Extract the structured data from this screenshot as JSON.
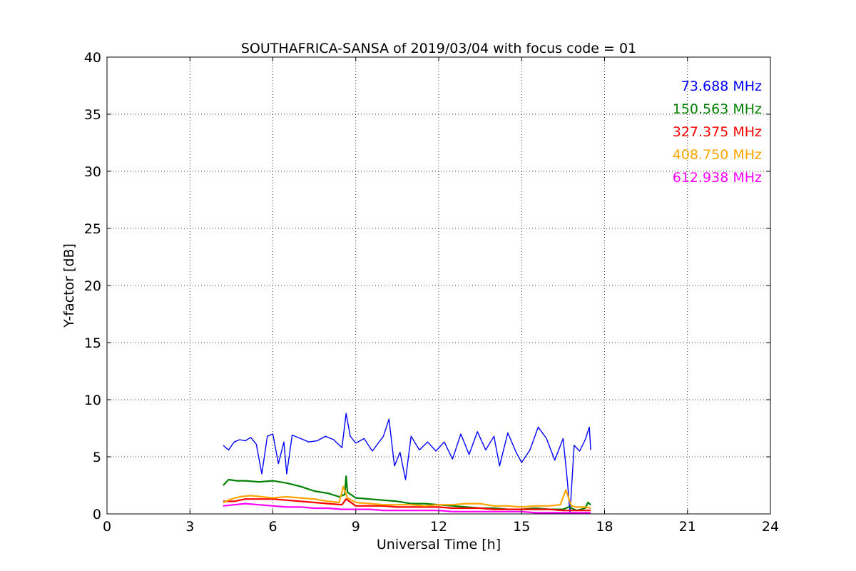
{
  "chart_data": {
    "type": "line",
    "title": "SOUTHAFRICA-SANSA of 2019/03/04 with focus code = 01",
    "xlabel": "Universal Time [h]",
    "ylabel": "Y-factor [dB]",
    "xlim": [
      0,
      24
    ],
    "ylim": [
      0,
      40
    ],
    "xticks": [
      0,
      3,
      6,
      9,
      12,
      15,
      18,
      21,
      24
    ],
    "yticks": [
      0,
      5,
      10,
      15,
      20,
      25,
      30,
      35,
      40
    ],
    "grid": true,
    "legend_position": "top-right",
    "series": [
      {
        "name": "73.688 MHz",
        "color": "#0000ff",
        "points": [
          [
            4.2,
            6.0
          ],
          [
            4.4,
            5.6
          ],
          [
            4.6,
            6.3
          ],
          [
            4.8,
            6.5
          ],
          [
            5.0,
            6.4
          ],
          [
            5.2,
            6.7
          ],
          [
            5.4,
            6.1
          ],
          [
            5.6,
            3.5
          ],
          [
            5.8,
            6.8
          ],
          [
            6.0,
            7.0
          ],
          [
            6.2,
            4.4
          ],
          [
            6.4,
            6.3
          ],
          [
            6.5,
            3.5
          ],
          [
            6.7,
            6.9
          ],
          [
            7.0,
            6.6
          ],
          [
            7.3,
            6.3
          ],
          [
            7.6,
            6.4
          ],
          [
            7.9,
            6.8
          ],
          [
            8.2,
            6.5
          ],
          [
            8.5,
            5.8
          ],
          [
            8.65,
            8.8
          ],
          [
            8.8,
            6.8
          ],
          [
            9.0,
            6.2
          ],
          [
            9.3,
            6.6
          ],
          [
            9.6,
            5.5
          ],
          [
            10.0,
            6.8
          ],
          [
            10.2,
            8.3
          ],
          [
            10.4,
            4.2
          ],
          [
            10.6,
            5.4
          ],
          [
            10.8,
            3.0
          ],
          [
            11.0,
            6.8
          ],
          [
            11.3,
            5.6
          ],
          [
            11.6,
            6.3
          ],
          [
            11.9,
            5.5
          ],
          [
            12.2,
            6.3
          ],
          [
            12.5,
            4.8
          ],
          [
            12.8,
            7.0
          ],
          [
            13.1,
            5.2
          ],
          [
            13.4,
            7.2
          ],
          [
            13.7,
            5.6
          ],
          [
            14.0,
            6.8
          ],
          [
            14.2,
            4.2
          ],
          [
            14.5,
            7.1
          ],
          [
            14.8,
            5.4
          ],
          [
            15.0,
            4.5
          ],
          [
            15.3,
            5.6
          ],
          [
            15.6,
            7.6
          ],
          [
            15.9,
            6.6
          ],
          [
            16.2,
            4.7
          ],
          [
            16.5,
            6.6
          ],
          [
            16.65,
            3.0
          ],
          [
            16.75,
            0.1
          ],
          [
            16.9,
            6.0
          ],
          [
            17.1,
            5.5
          ],
          [
            17.3,
            6.5
          ],
          [
            17.45,
            7.6
          ],
          [
            17.5,
            5.6
          ]
        ]
      },
      {
        "name": "150.563 MHz",
        "color": "#008000",
        "points": [
          [
            4.2,
            2.5
          ],
          [
            4.4,
            3.0
          ],
          [
            4.7,
            2.9
          ],
          [
            5.0,
            2.9
          ],
          [
            5.5,
            2.8
          ],
          [
            6.0,
            2.9
          ],
          [
            6.5,
            2.7
          ],
          [
            7.0,
            2.4
          ],
          [
            7.5,
            2.0
          ],
          [
            8.0,
            1.8
          ],
          [
            8.4,
            1.5
          ],
          [
            8.6,
            1.7
          ],
          [
            8.65,
            3.3
          ],
          [
            8.7,
            1.9
          ],
          [
            9.0,
            1.4
          ],
          [
            9.5,
            1.3
          ],
          [
            10.0,
            1.2
          ],
          [
            10.5,
            1.1
          ],
          [
            11.0,
            0.9
          ],
          [
            11.5,
            0.9
          ],
          [
            12.0,
            0.8
          ],
          [
            12.5,
            0.7
          ],
          [
            13.0,
            0.6
          ],
          [
            13.5,
            0.5
          ],
          [
            14.0,
            0.5
          ],
          [
            14.5,
            0.4
          ],
          [
            15.0,
            0.4
          ],
          [
            15.5,
            0.5
          ],
          [
            16.0,
            0.4
          ],
          [
            16.5,
            0.4
          ],
          [
            16.7,
            0.6
          ],
          [
            17.0,
            0.3
          ],
          [
            17.3,
            0.5
          ],
          [
            17.4,
            1.0
          ],
          [
            17.5,
            0.8
          ]
        ]
      },
      {
        "name": "327.375 MHz",
        "color": "#ff0000",
        "points": [
          [
            4.2,
            1.1
          ],
          [
            4.6,
            1.1
          ],
          [
            5.0,
            1.3
          ],
          [
            5.5,
            1.3
          ],
          [
            6.0,
            1.3
          ],
          [
            6.5,
            1.2
          ],
          [
            7.0,
            1.1
          ],
          [
            7.5,
            1.0
          ],
          [
            8.0,
            0.9
          ],
          [
            8.5,
            0.8
          ],
          [
            8.65,
            1.3
          ],
          [
            9.0,
            0.7
          ],
          [
            9.5,
            0.7
          ],
          [
            10.0,
            0.7
          ],
          [
            10.5,
            0.6
          ],
          [
            11.0,
            0.6
          ],
          [
            11.5,
            0.6
          ],
          [
            12.0,
            0.6
          ],
          [
            12.5,
            0.5
          ],
          [
            13.0,
            0.5
          ],
          [
            13.5,
            0.5
          ],
          [
            14.0,
            0.4
          ],
          [
            14.5,
            0.4
          ],
          [
            15.0,
            0.4
          ],
          [
            15.5,
            0.4
          ],
          [
            16.0,
            0.4
          ],
          [
            16.5,
            0.3
          ],
          [
            17.0,
            0.3
          ],
          [
            17.5,
            0.3
          ]
        ]
      },
      {
        "name": "408.750 MHz",
        "color": "#ffa500",
        "points": [
          [
            4.2,
            1.0
          ],
          [
            4.5,
            1.3
          ],
          [
            4.8,
            1.5
          ],
          [
            5.2,
            1.6
          ],
          [
            5.6,
            1.5
          ],
          [
            6.0,
            1.4
          ],
          [
            6.5,
            1.5
          ],
          [
            7.0,
            1.4
          ],
          [
            7.5,
            1.3
          ],
          [
            8.0,
            1.1
          ],
          [
            8.4,
            1.0
          ],
          [
            8.55,
            2.4
          ],
          [
            8.7,
            1.4
          ],
          [
            9.0,
            1.0
          ],
          [
            9.5,
            0.9
          ],
          [
            10.0,
            0.8
          ],
          [
            10.5,
            0.8
          ],
          [
            11.0,
            0.8
          ],
          [
            11.5,
            0.7
          ],
          [
            12.0,
            0.8
          ],
          [
            12.5,
            0.8
          ],
          [
            13.0,
            0.9
          ],
          [
            13.5,
            0.9
          ],
          [
            14.0,
            0.7
          ],
          [
            14.5,
            0.7
          ],
          [
            15.0,
            0.6
          ],
          [
            15.5,
            0.7
          ],
          [
            16.0,
            0.7
          ],
          [
            16.4,
            0.8
          ],
          [
            16.6,
            2.1
          ],
          [
            16.8,
            0.7
          ],
          [
            17.0,
            0.6
          ],
          [
            17.3,
            0.6
          ],
          [
            17.5,
            0.5
          ]
        ]
      },
      {
        "name": "612.938 MHz",
        "color": "#ff00ff",
        "points": [
          [
            4.2,
            0.7
          ],
          [
            4.6,
            0.8
          ],
          [
            5.0,
            0.9
          ],
          [
            5.5,
            0.8
          ],
          [
            6.0,
            0.7
          ],
          [
            6.5,
            0.6
          ],
          [
            7.0,
            0.6
          ],
          [
            7.5,
            0.5
          ],
          [
            8.0,
            0.5
          ],
          [
            8.5,
            0.4
          ],
          [
            9.0,
            0.4
          ],
          [
            9.5,
            0.4
          ],
          [
            10.0,
            0.3
          ],
          [
            10.5,
            0.3
          ],
          [
            11.0,
            0.3
          ],
          [
            11.5,
            0.3
          ],
          [
            12.0,
            0.3
          ],
          [
            12.5,
            0.2
          ],
          [
            13.0,
            0.2
          ],
          [
            13.5,
            0.2
          ],
          [
            14.0,
            0.2
          ],
          [
            14.5,
            0.2
          ],
          [
            15.0,
            0.2
          ],
          [
            15.5,
            0.1
          ],
          [
            16.0,
            0.1
          ],
          [
            16.5,
            0.1
          ],
          [
            17.0,
            0.1
          ],
          [
            17.5,
            0.1
          ]
        ]
      }
    ]
  }
}
